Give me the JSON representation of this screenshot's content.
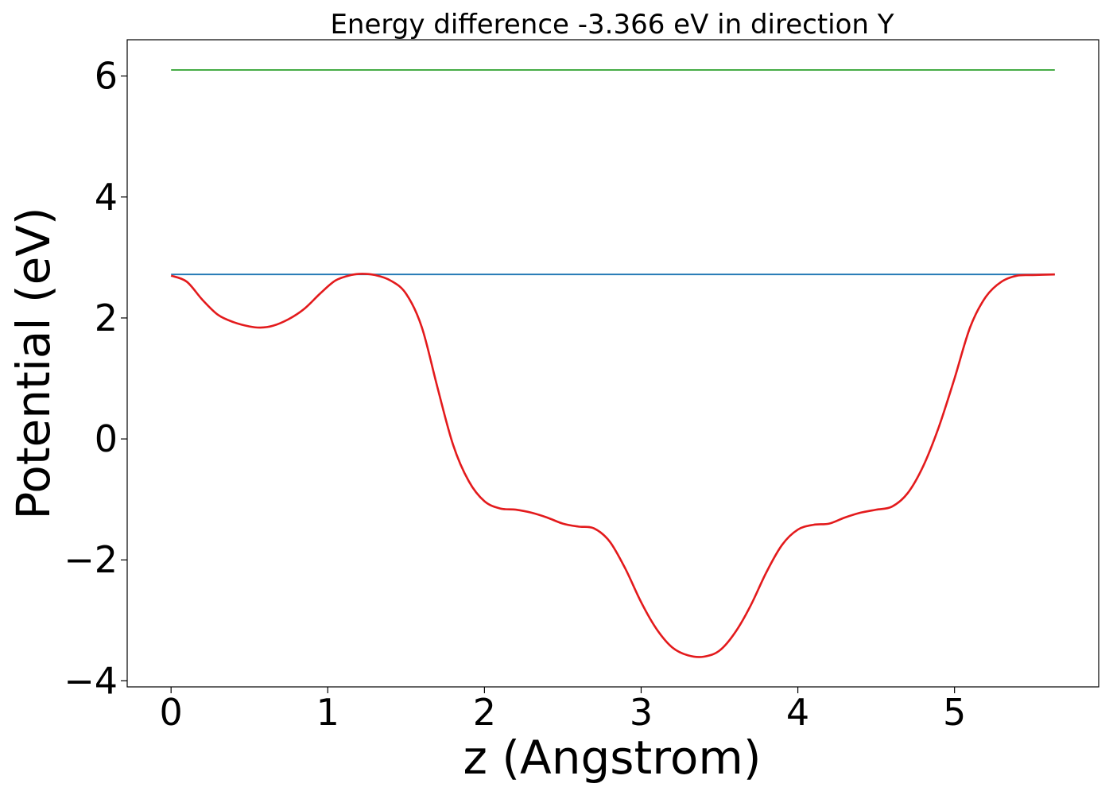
{
  "chart_data": {
    "type": "line",
    "title": "Energy difference -3.366 eV in direction Y",
    "xlabel": "z (Angstrom)",
    "ylabel": "Potential (eV)",
    "xlim": [
      -0.28,
      5.92
    ],
    "ylim": [
      -4.1,
      6.6
    ],
    "xticks": [
      0,
      1,
      2,
      3,
      4,
      5
    ],
    "xtick_labels": [
      "0",
      "1",
      "2",
      "3",
      "4",
      "5"
    ],
    "yticks": [
      -4,
      -2,
      0,
      2,
      4,
      6
    ],
    "ytick_labels": [
      "−4",
      "−2",
      "0",
      "2",
      "4",
      "6"
    ],
    "grid": false,
    "series": [
      {
        "color": "#2ca02c",
        "x": [
          0,
          5.64
        ],
        "y": [
          6.1,
          6.1
        ]
      },
      {
        "color": "#1f77b4",
        "x": [
          0,
          5.64
        ],
        "y": [
          2.72,
          2.72
        ]
      },
      {
        "color": "#e31a1c",
        "x": [
          0,
          0.1,
          0.2,
          0.3,
          0.4,
          0.5,
          0.57,
          0.65,
          0.75,
          0.85,
          0.95,
          1.05,
          1.15,
          1.22,
          1.3,
          1.4,
          1.5,
          1.6,
          1.7,
          1.8,
          1.9,
          2.0,
          2.1,
          2.2,
          2.3,
          2.4,
          2.5,
          2.6,
          2.7,
          2.8,
          2.9,
          3.0,
          3.1,
          3.2,
          3.3,
          3.4,
          3.5,
          3.6,
          3.7,
          3.8,
          3.9,
          4.0,
          4.1,
          4.2,
          4.3,
          4.4,
          4.5,
          4.6,
          4.7,
          4.8,
          4.9,
          5.0,
          5.1,
          5.2,
          5.3,
          5.4,
          5.5,
          5.64
        ],
        "y": [
          2.7,
          2.6,
          2.3,
          2.05,
          1.93,
          1.86,
          1.84,
          1.87,
          1.98,
          2.15,
          2.4,
          2.62,
          2.71,
          2.73,
          2.71,
          2.62,
          2.4,
          1.85,
          0.85,
          -0.1,
          -0.7,
          -1.03,
          -1.15,
          -1.17,
          -1.22,
          -1.3,
          -1.4,
          -1.45,
          -1.48,
          -1.7,
          -2.15,
          -2.7,
          -3.15,
          -3.45,
          -3.58,
          -3.6,
          -3.5,
          -3.2,
          -2.75,
          -2.2,
          -1.75,
          -1.5,
          -1.42,
          -1.4,
          -1.3,
          -1.22,
          -1.17,
          -1.12,
          -0.9,
          -0.45,
          0.2,
          1.0,
          1.85,
          2.35,
          2.6,
          2.7,
          2.71,
          2.72
        ]
      }
    ]
  }
}
